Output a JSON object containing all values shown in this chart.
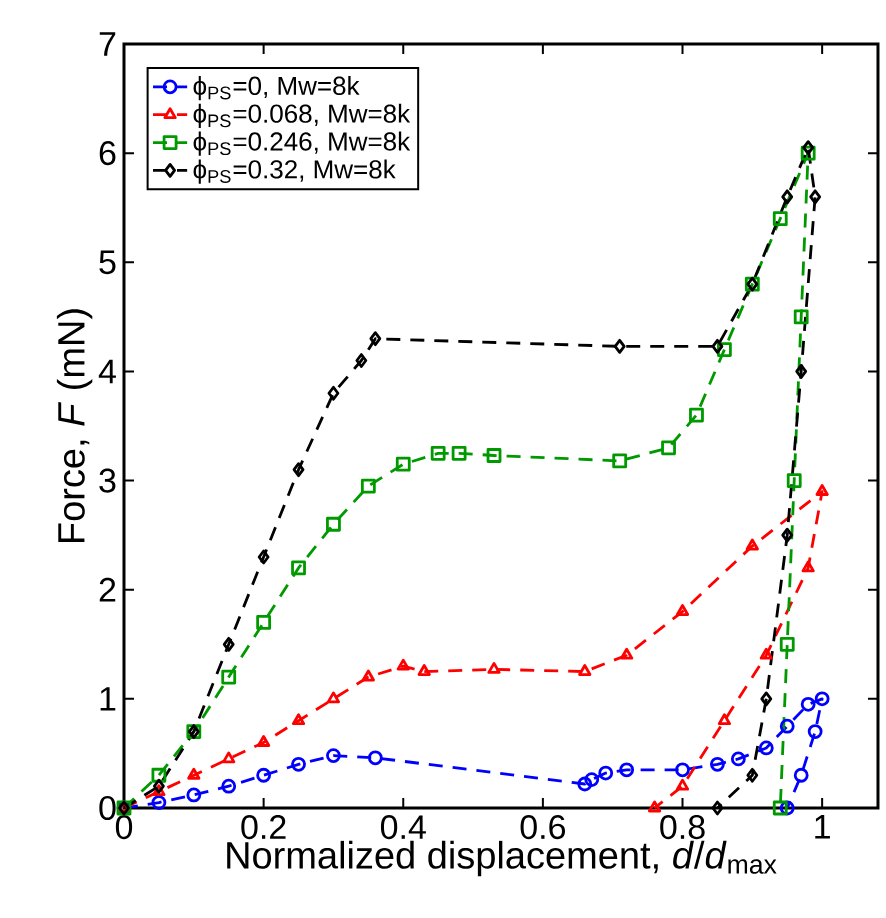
{
  "chart_data": {
    "type": "line",
    "xlabel": "Normalized displacement, *d*/*d*$_{max}$",
    "ylabel": "Force, *F* (mN)",
    "xlim": [
      0,
      1.08
    ],
    "ylim": [
      0,
      7
    ],
    "xticks": [
      0,
      0.2,
      0.4,
      0.6,
      0.8,
      1
    ],
    "yticks": [
      0,
      1,
      2,
      3,
      4,
      5,
      6,
      7
    ],
    "legend": "top left",
    "line_style": "dashed",
    "series": [
      {
        "name": "ϕ$_{PS}$=0, Mw=8k",
        "color": "#0000ff",
        "marker": "circle",
        "x": [
          0,
          0.05,
          0.1,
          0.15,
          0.2,
          0.25,
          0.3,
          0.36,
          0.66,
          0.67,
          0.69,
          0.72,
          0.8,
          0.85,
          0.88,
          0.92,
          0.95,
          0.98,
          1.0,
          0.99,
          0.97,
          0.95
        ],
        "values": [
          0,
          0.05,
          0.12,
          0.2,
          0.3,
          0.4,
          0.48,
          0.46,
          0.22,
          0.26,
          0.32,
          0.35,
          0.35,
          0.4,
          0.45,
          0.55,
          0.75,
          0.95,
          1.0,
          0.7,
          0.3,
          0
        ]
      },
      {
        "name": "ϕ$_{PS}$=0.068, Mw=8k",
        "color": "#ff0000",
        "marker": "triangle",
        "x": [
          0,
          0.05,
          0.1,
          0.15,
          0.2,
          0.25,
          0.3,
          0.35,
          0.4,
          0.43,
          0.53,
          0.66,
          0.72,
          0.8,
          0.9,
          1.0,
          0.98,
          0.92,
          0.86,
          0.8,
          0.76
        ],
        "values": [
          0,
          0.15,
          0.3,
          0.45,
          0.6,
          0.8,
          1.0,
          1.2,
          1.3,
          1.25,
          1.27,
          1.25,
          1.4,
          1.8,
          2.4,
          2.9,
          2.2,
          1.4,
          0.8,
          0.2,
          0
        ]
      },
      {
        "name": "ϕ$_{PS}$=0.246, Mw=8k",
        "color": "#009900",
        "marker": "square",
        "x": [
          0,
          0.05,
          0.1,
          0.15,
          0.2,
          0.25,
          0.3,
          0.35,
          0.4,
          0.45,
          0.48,
          0.53,
          0.71,
          0.78,
          0.82,
          0.86,
          0.9,
          0.94,
          0.98,
          0.97,
          0.96,
          0.95,
          0.94
        ],
        "values": [
          0,
          0.3,
          0.7,
          1.2,
          1.7,
          2.2,
          2.6,
          2.95,
          3.15,
          3.25,
          3.25,
          3.23,
          3.18,
          3.3,
          3.6,
          4.2,
          4.8,
          5.4,
          6.0,
          4.5,
          3,
          1.5,
          0
        ]
      },
      {
        "name": "ϕ$_{PS}$=0.32, Mw=8k",
        "color": "#000000",
        "marker": "diamond",
        "x": [
          0,
          0.05,
          0.1,
          0.15,
          0.2,
          0.25,
          0.3,
          0.34,
          0.36,
          0.71,
          0.85,
          0.9,
          0.95,
          0.98,
          0.99,
          0.97,
          0.95,
          0.92,
          0.9,
          0.85
        ],
        "values": [
          0,
          0.2,
          0.7,
          1.5,
          2.3,
          3.1,
          3.8,
          4.1,
          4.3,
          4.23,
          4.23,
          4.8,
          5.6,
          6.05,
          5.6,
          4,
          2.5,
          1,
          0.3,
          0
        ]
      }
    ]
  }
}
